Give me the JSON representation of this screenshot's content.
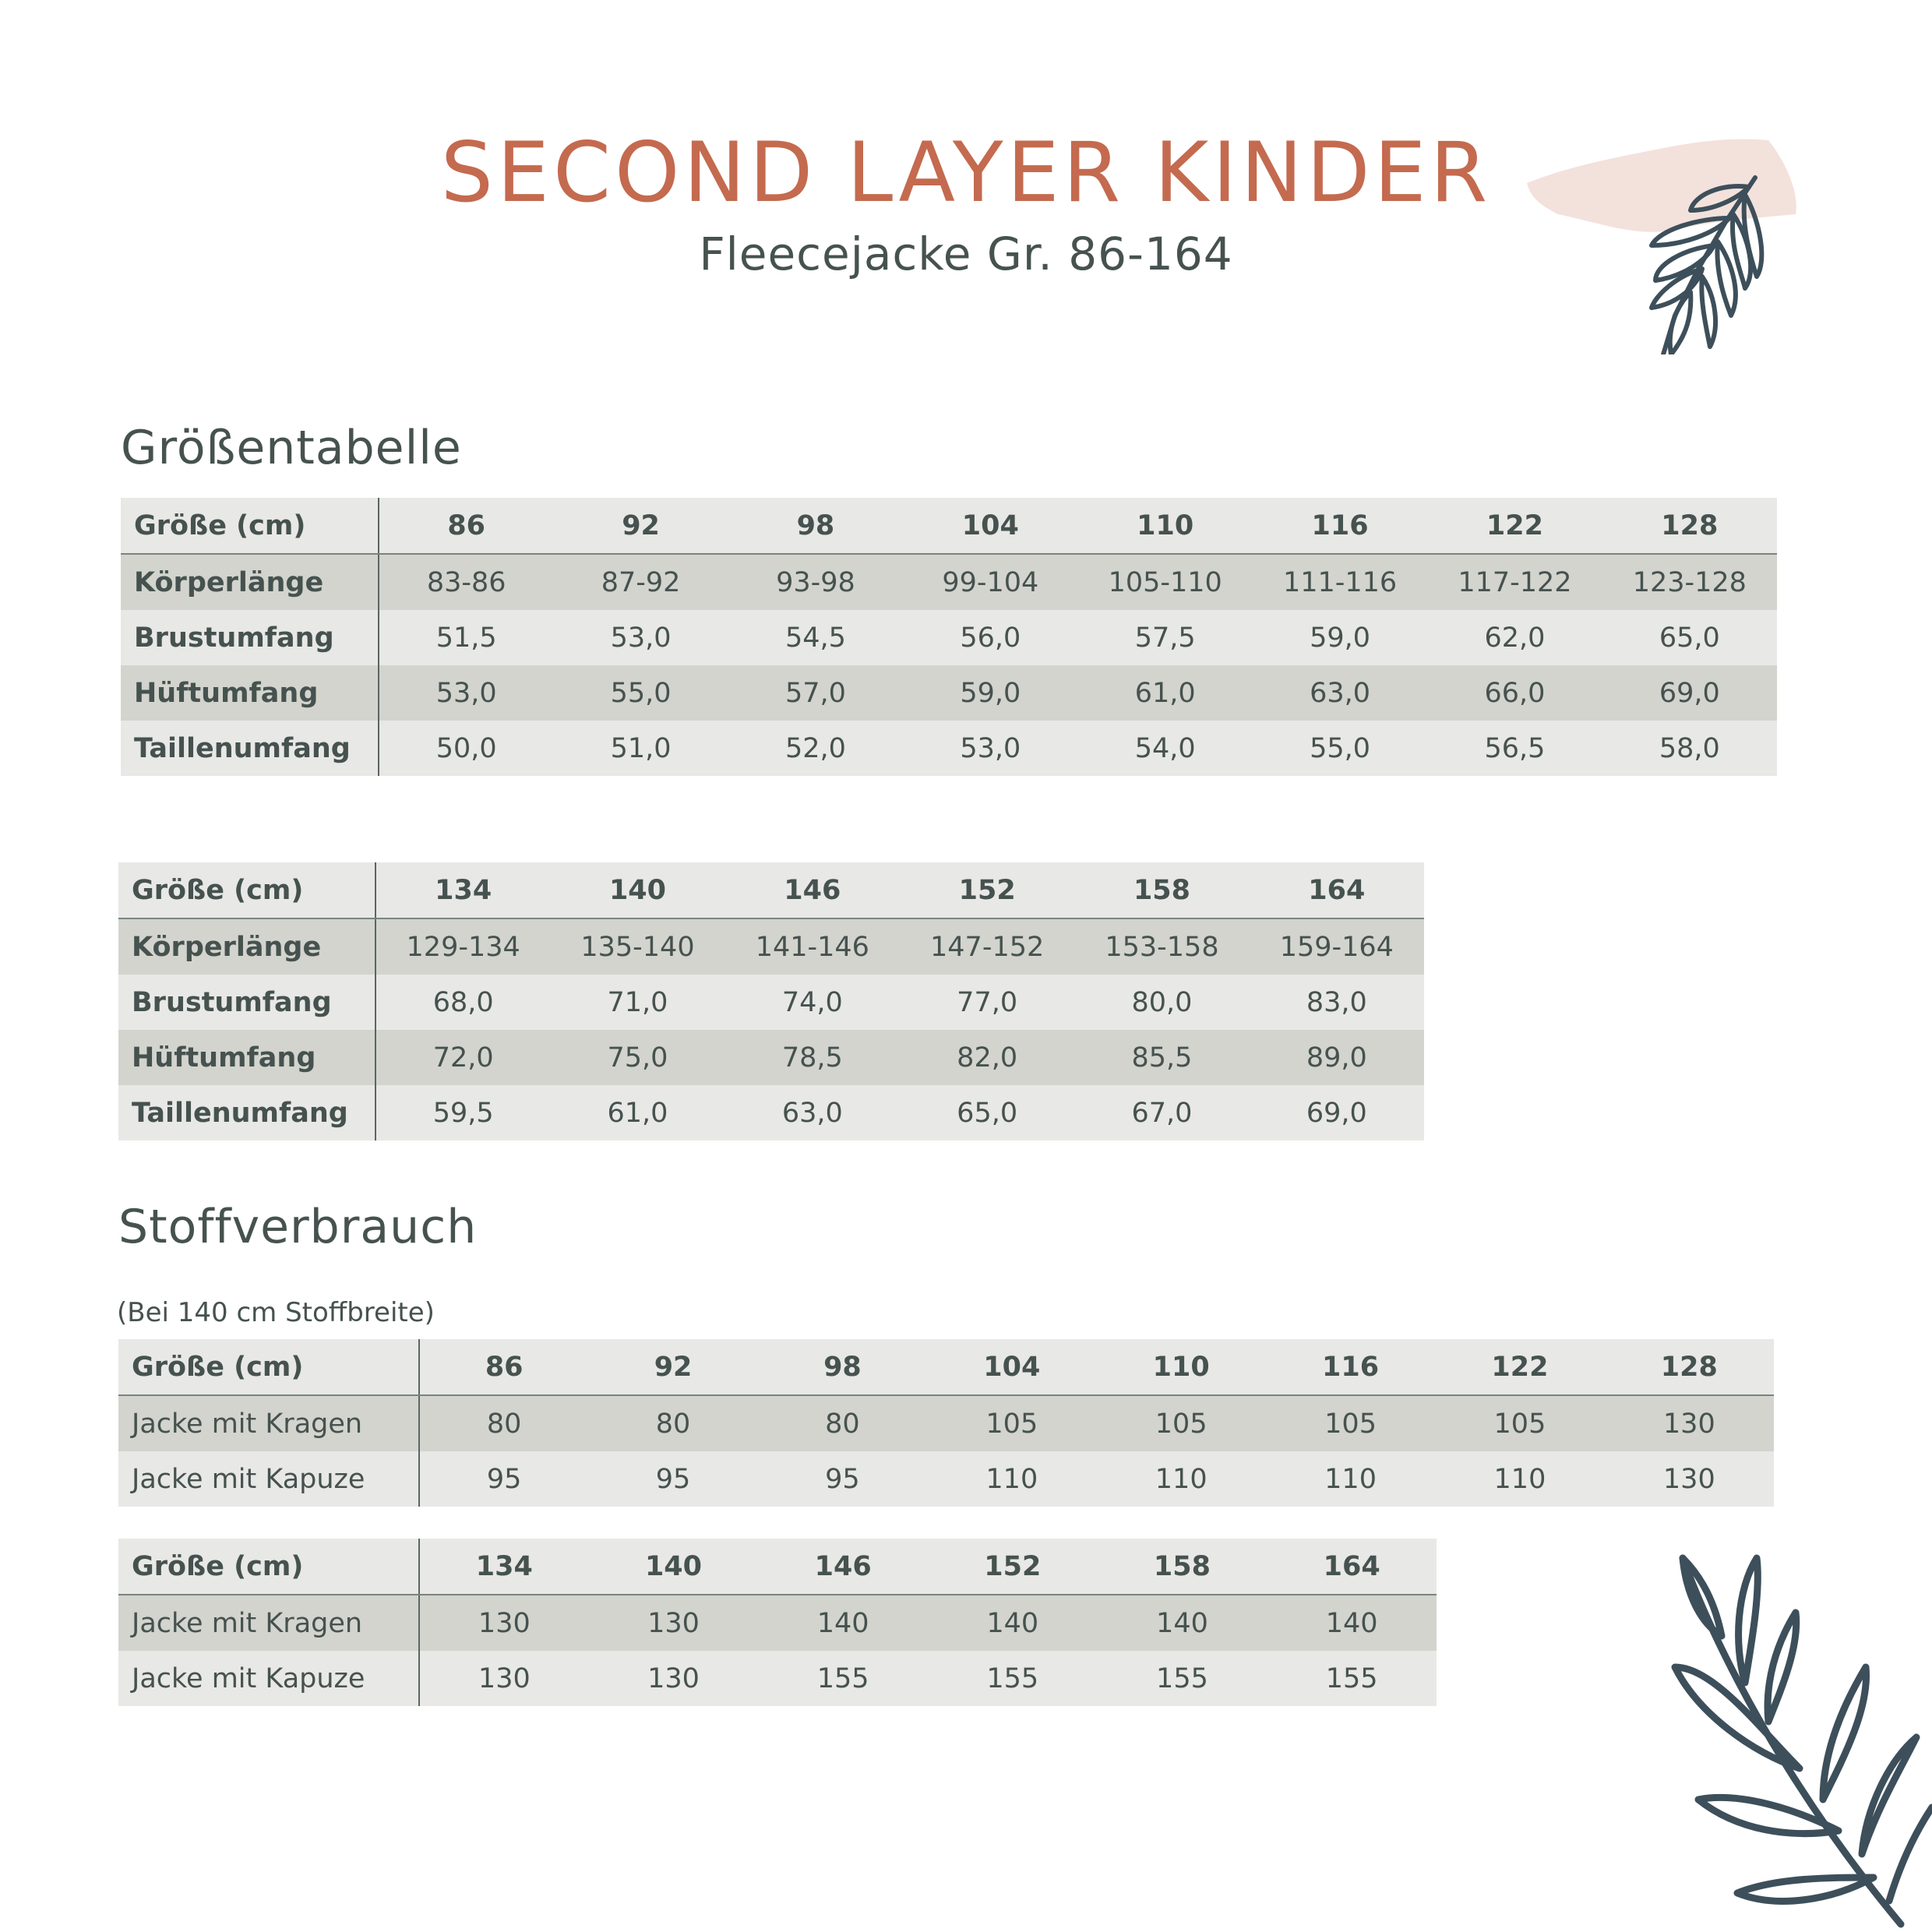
{
  "header": {
    "title": "SECOND LAYER KINDER",
    "subtitle": "Fleecejacke Gr. 86-164"
  },
  "sizes_section": {
    "heading": "Größentabelle",
    "tables": [
      {
        "header": [
          "Größe (cm)",
          "86",
          "92",
          "98",
          "104",
          "110",
          "116",
          "122",
          "128"
        ],
        "rows": [
          [
            "Körperlänge",
            "83-86",
            "87-92",
            "93-98",
            "99-104",
            "105-110",
            "111-116",
            "117-122",
            "123-128"
          ],
          [
            "Brustumfang",
            "51,5",
            "53,0",
            "54,5",
            "56,0",
            "57,5",
            "59,0",
            "62,0",
            "65,0"
          ],
          [
            "Hüftumfang",
            "53,0",
            "55,0",
            "57,0",
            "59,0",
            "61,0",
            "63,0",
            "66,0",
            "69,0"
          ],
          [
            "Taillenumfang",
            "50,0",
            "51,0",
            "52,0",
            "53,0",
            "54,0",
            "55,0",
            "56,5",
            "58,0"
          ]
        ]
      },
      {
        "header": [
          "Größe (cm)",
          "134",
          "140",
          "146",
          "152",
          "158",
          "164"
        ],
        "rows": [
          [
            "Körperlänge",
            "129-134",
            "135-140",
            "141-146",
            "147-152",
            "153-158",
            "159-164"
          ],
          [
            "Brustumfang",
            "68,0",
            "71,0",
            "74,0",
            "77,0",
            "80,0",
            "83,0"
          ],
          [
            "Hüftumfang",
            "72,0",
            "75,0",
            "78,5",
            "82,0",
            "85,5",
            "89,0"
          ],
          [
            "Taillenumfang",
            "59,5",
            "61,0",
            "63,0",
            "65,0",
            "67,0",
            "69,0"
          ]
        ]
      }
    ]
  },
  "fabric_section": {
    "heading": "Stoffverbrauch",
    "note": "(Bei 140 cm Stoffbreite)",
    "tables": [
      {
        "header": [
          "Größe (cm)",
          "86",
          "92",
          "98",
          "104",
          "110",
          "116",
          "122",
          "128"
        ],
        "rows": [
          [
            "Jacke mit Kragen",
            "80",
            "80",
            "80",
            "105",
            "105",
            "105",
            "105",
            "130"
          ],
          [
            "Jacke mit Kapuze",
            "95",
            "95",
            "95",
            "110",
            "110",
            "110",
            "110",
            "130"
          ]
        ]
      },
      {
        "header": [
          "Größe (cm)",
          "134",
          "140",
          "146",
          "152",
          "158",
          "164"
        ],
        "rows": [
          [
            "Jacke mit Kragen",
            "130",
            "130",
            "140",
            "140",
            "140",
            "140"
          ],
          [
            "Jacke mit Kapuze",
            "130",
            "130",
            "155",
            "155",
            "155",
            "155"
          ]
        ]
      }
    ]
  },
  "colors": {
    "title": "#c46a4f",
    "text": "#46524f",
    "row_light": "#e8e8e6",
    "row_dark": "#d3d4ce",
    "leaf": "#3d4f5a",
    "watercolor": "#f1dcd6"
  },
  "decorations": [
    "leaf-icon",
    "watercolor-blot"
  ]
}
